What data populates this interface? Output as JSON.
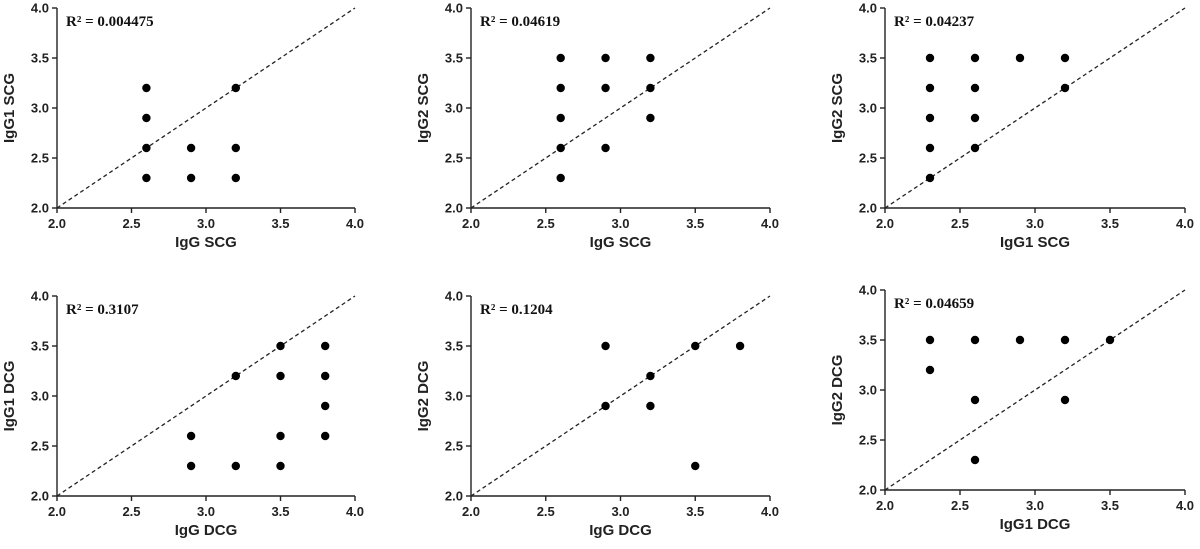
{
  "chart_data": [
    {
      "type": "scatter",
      "xlabel": "IgG SCG",
      "ylabel": "IgG1 SCG",
      "annotation": "R² = 0.004475",
      "xlim": [
        2.0,
        4.0
      ],
      "ylim": [
        2.0,
        4.0
      ],
      "xticks": [
        "2.0",
        "2.5",
        "3.0",
        "3.5",
        "4.0"
      ],
      "yticks": [
        "2.0",
        "2.5",
        "3.0",
        "3.5",
        "4.0"
      ],
      "reference_line": "y = x (dashed)",
      "points": [
        [
          2.6,
          3.2
        ],
        [
          2.6,
          2.9
        ],
        [
          2.6,
          2.6
        ],
        [
          2.6,
          2.3
        ],
        [
          2.9,
          2.6
        ],
        [
          2.9,
          2.3
        ],
        [
          3.2,
          3.2
        ],
        [
          3.2,
          2.6
        ],
        [
          3.2,
          2.3
        ]
      ]
    },
    {
      "type": "scatter",
      "xlabel": "IgG SCG",
      "ylabel": "IgG2 SCG",
      "annotation": "R² = 0.04619",
      "xlim": [
        2.0,
        4.0
      ],
      "ylim": [
        2.0,
        4.0
      ],
      "xticks": [
        "2.0",
        "2.5",
        "3.0",
        "3.5",
        "4.0"
      ],
      "yticks": [
        "2.0",
        "2.5",
        "3.0",
        "3.5",
        "4.0"
      ],
      "reference_line": "y = x (dashed)",
      "points": [
        [
          2.6,
          3.5
        ],
        [
          2.6,
          3.2
        ],
        [
          2.6,
          2.9
        ],
        [
          2.6,
          2.6
        ],
        [
          2.6,
          2.3
        ],
        [
          2.9,
          3.5
        ],
        [
          2.9,
          3.2
        ],
        [
          2.9,
          2.6
        ],
        [
          3.2,
          3.5
        ],
        [
          3.2,
          3.2
        ],
        [
          3.2,
          2.9
        ]
      ]
    },
    {
      "type": "scatter",
      "xlabel": "IgG1 SCG",
      "ylabel": "IgG2 SCG",
      "annotation": "R² = 0.04237",
      "xlim": [
        2.0,
        4.0
      ],
      "ylim": [
        2.0,
        4.0
      ],
      "xticks": [
        "2.0",
        "2.5",
        "3.0",
        "3.5",
        "4.0"
      ],
      "yticks": [
        "2.0",
        "2.5",
        "3.0",
        "3.5",
        "4.0"
      ],
      "reference_line": "y = x (dashed)",
      "points": [
        [
          2.3,
          3.5
        ],
        [
          2.3,
          3.2
        ],
        [
          2.3,
          2.9
        ],
        [
          2.3,
          2.6
        ],
        [
          2.3,
          2.3
        ],
        [
          2.6,
          3.5
        ],
        [
          2.6,
          3.2
        ],
        [
          2.6,
          2.9
        ],
        [
          2.6,
          2.6
        ],
        [
          2.9,
          3.5
        ],
        [
          3.2,
          3.5
        ],
        [
          3.2,
          3.2
        ]
      ]
    },
    {
      "type": "scatter",
      "xlabel": "IgG DCG",
      "ylabel": "IgG1 DCG",
      "annotation": "R² = 0.3107",
      "xlim": [
        2.0,
        4.0
      ],
      "ylim": [
        2.0,
        4.0
      ],
      "xticks": [
        "2.0",
        "2.5",
        "3.0",
        "3.5",
        "4.0"
      ],
      "yticks": [
        "2.0",
        "2.5",
        "3.0",
        "3.5",
        "4.0"
      ],
      "reference_line": "y = x (dashed)",
      "points": [
        [
          2.9,
          2.6
        ],
        [
          2.9,
          2.3
        ],
        [
          3.2,
          3.2
        ],
        [
          3.2,
          2.3
        ],
        [
          3.5,
          3.5
        ],
        [
          3.5,
          3.2
        ],
        [
          3.5,
          2.6
        ],
        [
          3.5,
          2.3
        ],
        [
          3.8,
          3.5
        ],
        [
          3.8,
          3.2
        ],
        [
          3.8,
          2.9
        ],
        [
          3.8,
          2.6
        ]
      ]
    },
    {
      "type": "scatter",
      "xlabel": "IgG DCG",
      "ylabel": "IgG2 DCG",
      "annotation": "R² = 0.1204",
      "xlim": [
        2.0,
        4.0
      ],
      "ylim": [
        2.0,
        4.0
      ],
      "xticks": [
        "2.0",
        "2.5",
        "3.0",
        "3.5",
        "4.0"
      ],
      "yticks": [
        "2.0",
        "2.5",
        "3.0",
        "3.5",
        "4.0"
      ],
      "reference_line": "y = x (dashed)",
      "points": [
        [
          2.9,
          3.5
        ],
        [
          2.9,
          2.9
        ],
        [
          3.2,
          3.2
        ],
        [
          3.2,
          2.9
        ],
        [
          3.5,
          3.5
        ],
        [
          3.5,
          2.3
        ],
        [
          3.8,
          3.5
        ]
      ]
    },
    {
      "type": "scatter",
      "xlabel": "IgG1 DCG",
      "ylabel": "IgG2 DCG",
      "annotation": "R² = 0.04659",
      "xlim": [
        2.0,
        4.0
      ],
      "ylim": [
        2.0,
        4.0
      ],
      "xticks": [
        "2.0",
        "2.5",
        "3.0",
        "3.5",
        "4.0"
      ],
      "yticks": [
        "2.0",
        "2.5",
        "3.0",
        "3.5",
        "4.0"
      ],
      "reference_line": "y = x (dashed)",
      "points": [
        [
          2.3,
          3.5
        ],
        [
          2.3,
          3.2
        ],
        [
          2.6,
          3.5
        ],
        [
          2.6,
          2.9
        ],
        [
          2.6,
          2.3
        ],
        [
          2.9,
          3.5
        ],
        [
          3.2,
          3.5
        ],
        [
          3.2,
          2.9
        ],
        [
          3.5,
          3.5
        ]
      ]
    }
  ]
}
